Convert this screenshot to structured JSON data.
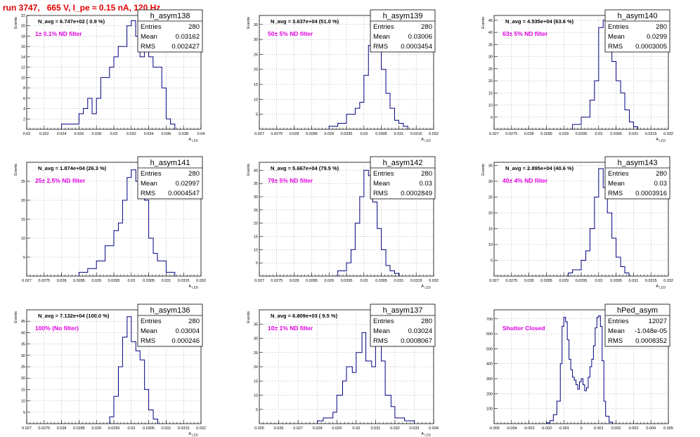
{
  "title": "run 3747,   665 V, I_pe ≈ 0.15 nA, 120 Hz",
  "chart_data": [
    {
      "type": "histogram",
      "name": "h_asym138",
      "ylabel": "Events",
      "xlabel": "A_LED",
      "navg": "N_avg = 6.747e+02 ( 0.9 %)",
      "filter": "1± 0.1% ND filter",
      "stats": {
        "entries": "280",
        "mean": "0.03162",
        "rms": "0.002427"
      },
      "xlim": [
        0.02,
        0.04
      ],
      "ylim": [
        0,
        22
      ],
      "xticks": [
        "0.02",
        "0.022",
        "0.024",
        "0.026",
        "0.028",
        "0.03",
        "0.032",
        "0.034",
        "0.036",
        "0.038",
        "0.04"
      ],
      "yticks": [
        "2",
        "4",
        "6",
        "8",
        "10",
        "12",
        "14",
        "16",
        "18",
        "20",
        "22"
      ],
      "bins": [
        [
          0.024,
          1
        ],
        [
          0.0245,
          1
        ],
        [
          0.0255,
          1
        ],
        [
          0.026,
          3
        ],
        [
          0.0265,
          4
        ],
        [
          0.027,
          6
        ],
        [
          0.0275,
          3
        ],
        [
          0.028,
          6
        ],
        [
          0.0285,
          10
        ],
        [
          0.029,
          10
        ],
        [
          0.0295,
          12
        ],
        [
          0.03,
          14
        ],
        [
          0.0305,
          16
        ],
        [
          0.031,
          16
        ],
        [
          0.0315,
          20
        ],
        [
          0.032,
          21
        ],
        [
          0.0325,
          18
        ],
        [
          0.033,
          14
        ],
        [
          0.0335,
          18
        ],
        [
          0.034,
          14
        ],
        [
          0.0345,
          12
        ],
        [
          0.035,
          12
        ],
        [
          0.0355,
          8
        ],
        [
          0.036,
          2
        ],
        [
          0.0365,
          1
        ]
      ]
    },
    {
      "type": "histogram",
      "name": "h_asym139",
      "ylabel": "Events",
      "xlabel": "A_LED",
      "navg": "N_avg = 3.637e+04 (51.0 %)",
      "filter": "50± 5% ND filter",
      "stats": {
        "entries": "280",
        "mean": "0.03006",
        "rms": "0.0003454"
      },
      "xlim": [
        0.027,
        0.032
      ],
      "ylim": [
        0,
        38
      ],
      "xticks": [
        "0.027",
        "0.0275",
        "0.028",
        "0.0285",
        "0.029",
        "0.0295",
        "0.03",
        "0.0305",
        "0.031",
        "0.0315",
        "0.032"
      ],
      "yticks": [
        "5",
        "10",
        "15",
        "20",
        "25",
        "30",
        "35"
      ],
      "bins": [
        [
          0.029,
          1
        ],
        [
          0.02925,
          2
        ],
        [
          0.0295,
          5
        ],
        [
          0.02975,
          7
        ],
        [
          0.02988,
          9
        ],
        [
          0.03,
          18
        ],
        [
          0.03013,
          28
        ],
        [
          0.03025,
          36
        ],
        [
          0.03038,
          30
        ],
        [
          0.0305,
          20
        ],
        [
          0.03063,
          12
        ],
        [
          0.03075,
          7
        ],
        [
          0.03088,
          3
        ],
        [
          0.031,
          2
        ],
        [
          0.03113,
          1
        ]
      ]
    },
    {
      "type": "histogram",
      "name": "h_asym140",
      "ylabel": "Events",
      "xlabel": "A_LED",
      "navg": "N_avg = 4.535e+04 (63.6 %)",
      "filter": "63± 5% ND filter",
      "stats": {
        "entries": "280",
        "mean": "0.0299",
        "rms": "0.0003005"
      },
      "xlim": [
        0.027,
        0.032
      ],
      "ylim": [
        0,
        47
      ],
      "xticks": [
        "0.027",
        "0.0275",
        "0.028",
        "0.0285",
        "0.029",
        "0.0295",
        "0.03",
        "0.0305",
        "0.031",
        "0.0315",
        "0.032"
      ],
      "yticks": [
        "5",
        "10",
        "15",
        "20",
        "25",
        "30",
        "35",
        "40",
        "45"
      ],
      "bins": [
        [
          0.02925,
          2
        ],
        [
          0.0295,
          5
        ],
        [
          0.02975,
          12
        ],
        [
          0.02988,
          20
        ],
        [
          0.03,
          42
        ],
        [
          0.03013,
          45
        ],
        [
          0.03025,
          35
        ],
        [
          0.03038,
          28
        ],
        [
          0.0305,
          20
        ],
        [
          0.03063,
          15
        ],
        [
          0.03075,
          8
        ],
        [
          0.03088,
          3
        ],
        [
          0.031,
          1
        ]
      ]
    },
    {
      "type": "histogram",
      "name": "h_asym141",
      "ylabel": "Events",
      "xlabel": "A_LED",
      "navg": "N_avg = 1.874e+04 (26.3 %)",
      "filter": "25± 2.5% ND filter",
      "stats": {
        "entries": "280",
        "mean": "0.02997",
        "rms": "0.0004547"
      },
      "xlim": [
        0.027,
        0.032
      ],
      "ylim": [
        0,
        30
      ],
      "xticks": [
        "0.027",
        "0.0275",
        "0.028",
        "0.0285",
        "0.029",
        "0.0295",
        "0.03",
        "0.0305",
        "0.031",
        "0.0315",
        "0.032"
      ],
      "yticks": [
        "5",
        "10",
        "15",
        "20",
        "25"
      ],
      "bins": [
        [
          0.0285,
          1
        ],
        [
          0.02875,
          2
        ],
        [
          0.029,
          4
        ],
        [
          0.02925,
          8
        ],
        [
          0.0295,
          12
        ],
        [
          0.02963,
          14
        ],
        [
          0.02975,
          20
        ],
        [
          0.02988,
          26
        ],
        [
          0.03,
          28
        ],
        [
          0.03013,
          25
        ],
        [
          0.03025,
          28
        ],
        [
          0.03038,
          20
        ],
        [
          0.0305,
          10
        ],
        [
          0.03063,
          6
        ],
        [
          0.03075,
          4
        ],
        [
          0.031,
          1
        ]
      ]
    },
    {
      "type": "histogram",
      "name": "h_asym142",
      "ylabel": "Events",
      "xlabel": "A_LED",
      "navg": "N_avg = 5.667e+04 (79.5 %)",
      "filter": "79± 5% ND filter",
      "stats": {
        "entries": "280",
        "mean": "0.03",
        "rms": "0.0002849"
      },
      "xlim": [
        0.027,
        0.032
      ],
      "ylim": [
        0,
        43
      ],
      "xticks": [
        "0.027",
        "0.0275",
        "0.028",
        "0.0285",
        "0.029",
        "0.0295",
        "0.03",
        "0.0305",
        "0.031",
        "0.0315",
        "0.032"
      ],
      "yticks": [
        "5",
        "10",
        "15",
        "20",
        "25",
        "30",
        "35",
        "40"
      ],
      "bins": [
        [
          0.02925,
          2
        ],
        [
          0.0295,
          5
        ],
        [
          0.02963,
          10
        ],
        [
          0.02975,
          20
        ],
        [
          0.02988,
          30
        ],
        [
          0.03,
          40
        ],
        [
          0.03013,
          38
        ],
        [
          0.03025,
          28
        ],
        [
          0.03038,
          18
        ],
        [
          0.0305,
          10
        ],
        [
          0.03063,
          4
        ],
        [
          0.03075,
          2
        ],
        [
          0.03088,
          1
        ]
      ]
    },
    {
      "type": "histogram",
      "name": "h_asym143",
      "ylabel": "Events",
      "xlabel": "A_LED",
      "navg": "N_avg = 2.895e+04 (40.6 %)",
      "filter": "40± 4% ND filter",
      "stats": {
        "entries": "280",
        "mean": "0.03",
        "rms": "0.0003916"
      },
      "xlim": [
        0.027,
        0.032
      ],
      "ylim": [
        0,
        36
      ],
      "xticks": [
        "0.027",
        "0.0275",
        "0.028",
        "0.0285",
        "0.029",
        "0.0295",
        "0.03",
        "0.0305",
        "0.031",
        "0.0315",
        "0.032"
      ],
      "yticks": [
        "5",
        "10",
        "15",
        "20",
        "25",
        "30",
        "35"
      ],
      "bins": [
        [
          0.02913,
          1
        ],
        [
          0.02925,
          2
        ],
        [
          0.0295,
          5
        ],
        [
          0.02963,
          8
        ],
        [
          0.02975,
          15
        ],
        [
          0.02988,
          25
        ],
        [
          0.03,
          34
        ],
        [
          0.03013,
          28
        ],
        [
          0.03025,
          20
        ],
        [
          0.03038,
          12
        ],
        [
          0.0305,
          6
        ],
        [
          0.03063,
          3
        ],
        [
          0.03075,
          1
        ]
      ]
    },
    {
      "type": "histogram",
      "name": "h_asym136",
      "ylabel": "Events",
      "xlabel": "A_LED",
      "navg": "N_avg = 7.132e+04 (100.0 %)",
      "filter": "100% (No filter)",
      "stats": {
        "entries": "280",
        "mean": "0.03004",
        "rms": "0.000246"
      },
      "xlim": [
        0.027,
        0.032
      ],
      "ylim": [
        0,
        50
      ],
      "xticks": [
        "0.027",
        "0.0275",
        "0.028",
        "0.0285",
        "0.029",
        "0.0295",
        "0.03",
        "0.0305",
        "0.031",
        "0.0315",
        "0.032"
      ],
      "yticks": [
        "5",
        "10",
        "15",
        "20",
        "25",
        "30",
        "35",
        "40",
        "45"
      ],
      "bins": [
        [
          0.02938,
          3
        ],
        [
          0.0295,
          12
        ],
        [
          0.02963,
          25
        ],
        [
          0.02975,
          38
        ],
        [
          0.02988,
          47
        ],
        [
          0.03,
          36
        ],
        [
          0.03013,
          32
        ],
        [
          0.03025,
          28
        ],
        [
          0.03038,
          15
        ],
        [
          0.0305,
          6
        ],
        [
          0.03063,
          2
        ]
      ]
    },
    {
      "type": "histogram",
      "name": "h_asym137",
      "ylabel": "Events",
      "xlabel": "A_LED",
      "navg": "N_avg = 6.809e+03 ( 9.5 %)",
      "filter": "10± 1% ND filter",
      "stats": {
        "entries": "280",
        "mean": "0.03024",
        "rms": "0.0008067"
      },
      "xlim": [
        0.025,
        0.034
      ],
      "ylim": [
        0,
        40
      ],
      "xticks": [
        "0.025",
        "0.026",
        "0.027",
        "0.028",
        "0.029",
        "0.03",
        "0.031",
        "0.032",
        "0.033",
        "0.034"
      ],
      "yticks": [
        "5",
        "10",
        "15",
        "20",
        "25",
        "30",
        "35"
      ],
      "bins": [
        [
          0.028,
          1
        ],
        [
          0.0283,
          2
        ],
        [
          0.0288,
          4
        ],
        [
          0.029,
          10
        ],
        [
          0.0293,
          15
        ],
        [
          0.0295,
          20
        ],
        [
          0.0298,
          18
        ],
        [
          0.03,
          25
        ],
        [
          0.0303,
          32
        ],
        [
          0.0305,
          22
        ],
        [
          0.0308,
          20
        ],
        [
          0.031,
          28
        ],
        [
          0.0313,
          22
        ],
        [
          0.0315,
          10
        ],
        [
          0.0318,
          6
        ],
        [
          0.032,
          2
        ],
        [
          0.0325,
          1
        ]
      ]
    },
    {
      "type": "histogram",
      "name": "hPed_asym",
      "ylabel": "",
      "xlabel": "",
      "navg": "",
      "filter": "Shutter Closed",
      "stats": {
        "entries": "12027",
        "mean": "-1.048e-05",
        "rms": "0.0008352"
      },
      "xlim": [
        -0.005,
        0.005
      ],
      "ylim": [
        0,
        760
      ],
      "xticks": [
        "-0.005",
        "-0.004",
        "-0.003",
        "-0.002",
        "-0.001",
        "0",
        "0.001",
        "0.002",
        "0.003",
        "0.004",
        "0.005"
      ],
      "yticks": [
        "100",
        "200",
        "300",
        "400",
        "500",
        "600",
        "700"
      ],
      "bins": [
        [
          -0.002,
          5
        ],
        [
          -0.0018,
          20
        ],
        [
          -0.0016,
          60
        ],
        [
          -0.0014,
          150
        ],
        [
          -0.0012,
          400
        ],
        [
          -0.0011,
          650
        ],
        [
          -0.001,
          710
        ],
        [
          -0.0009,
          680
        ],
        [
          -0.0008,
          560
        ],
        [
          -0.0007,
          430
        ],
        [
          -0.0006,
          360
        ],
        [
          -0.0005,
          310
        ],
        [
          -0.0004,
          290
        ],
        [
          -0.0003,
          260
        ],
        [
          -0.0002,
          230
        ],
        [
          -0.0001,
          280
        ],
        [
          0.0,
          300
        ],
        [
          0.0001,
          260
        ],
        [
          0.0002,
          220
        ],
        [
          0.0003,
          240
        ],
        [
          0.0004,
          310
        ],
        [
          0.0005,
          380
        ],
        [
          0.0006,
          430
        ],
        [
          0.0007,
          520
        ],
        [
          0.0008,
          640
        ],
        [
          0.0009,
          710
        ],
        [
          0.001,
          720
        ],
        [
          0.0011,
          650
        ],
        [
          0.0012,
          420
        ],
        [
          0.0013,
          150
        ],
        [
          0.0014,
          50
        ],
        [
          0.0016,
          10
        ]
      ]
    }
  ]
}
